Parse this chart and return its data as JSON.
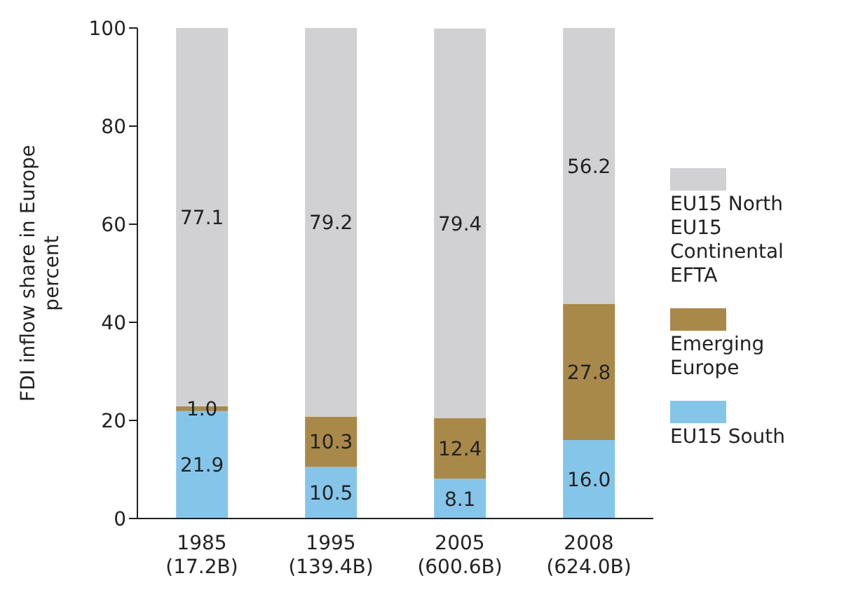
{
  "chart_data": {
    "type": "bar",
    "stacked": true,
    "ylabel": "FDI inflow share in Europe\npercent",
    "categories": [
      "1985\n(17.2B)",
      "1995\n(139.4B)",
      "2005\n(600.6B)",
      "2008\n(624.0B)"
    ],
    "series": [
      {
        "name": "EU15 South",
        "color": "#86c5ea",
        "values": [
          21.9,
          10.5,
          8.1,
          16.0
        ],
        "value_labels": [
          "21.9",
          "10.5",
          "8.1",
          "16.0"
        ]
      },
      {
        "name": "Emerging Europe",
        "color": "#a8894a",
        "values": [
          1.0,
          10.3,
          12.4,
          27.8
        ],
        "value_labels": [
          "1.0",
          "10.3",
          "12.4",
          "27.8"
        ]
      },
      {
        "name": "EU15 North\nEU15 Continental\nEFTA",
        "color": "#d1d1d3",
        "values": [
          77.1,
          79.2,
          79.4,
          56.2
        ],
        "value_labels": [
          "77.1",
          "79.2",
          "79.4",
          "56.2"
        ]
      }
    ],
    "ylim": [
      0,
      100
    ],
    "yticks": [
      0,
      20,
      40,
      60,
      80,
      100
    ],
    "legend": "right"
  }
}
